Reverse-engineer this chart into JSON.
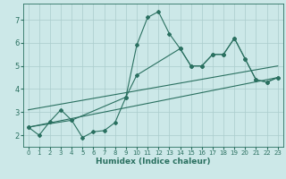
{
  "xlabel": "Humidex (Indice chaleur)",
  "background_color": "#cce8e8",
  "grid_color": "#aacccc",
  "line_color": "#2a7060",
  "xlim": [
    -0.5,
    23.5
  ],
  "ylim": [
    1.5,
    7.7
  ],
  "yticks": [
    2,
    3,
    4,
    5,
    6,
    7
  ],
  "xticks": [
    0,
    1,
    2,
    3,
    4,
    5,
    6,
    7,
    8,
    9,
    10,
    11,
    12,
    13,
    14,
    15,
    16,
    17,
    18,
    19,
    20,
    21,
    22,
    23
  ],
  "series1_x": [
    0,
    1,
    2,
    3,
    4,
    5,
    6,
    7,
    8,
    9,
    10,
    11,
    12,
    13,
    14,
    15,
    16,
    17,
    18,
    19,
    20,
    21,
    22,
    23
  ],
  "series1_y": [
    2.35,
    2.0,
    2.6,
    3.1,
    2.65,
    1.9,
    2.15,
    2.2,
    2.55,
    3.65,
    5.9,
    7.1,
    7.35,
    6.4,
    5.75,
    5.0,
    5.0,
    5.5,
    5.5,
    6.2,
    5.3,
    4.4,
    4.3,
    4.5
  ],
  "series2_x": [
    0,
    4,
    9,
    10,
    14,
    15,
    16,
    17,
    18,
    19,
    20,
    21,
    22,
    23
  ],
  "series2_y": [
    2.35,
    2.65,
    3.65,
    4.6,
    5.75,
    5.0,
    5.0,
    5.5,
    5.5,
    6.2,
    5.3,
    4.4,
    4.3,
    4.5
  ],
  "series3_x": [
    0,
    23
  ],
  "series3_y": [
    2.35,
    4.5
  ],
  "series4_x": [
    0,
    23
  ],
  "series4_y": [
    3.1,
    5.0
  ]
}
